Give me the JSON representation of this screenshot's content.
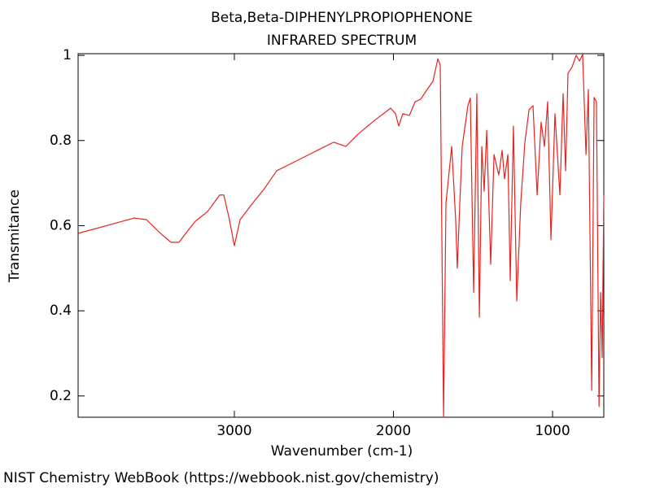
{
  "chart_data": {
    "type": "line",
    "title": "Beta,Beta-DIPHENYLPROPIOPHENONE",
    "subtitle": "INFRARED SPECTRUM",
    "x_label": "Wavenumber (cm-1)",
    "y_label": "Transmitance",
    "footer": "NIST Chemistry WebBook (https://webbook.nist.gov/chemistry)",
    "xlim": [
      3982,
      678
    ],
    "ylim": [
      0.15,
      1.004
    ],
    "xticks": [
      3000,
      2000,
      1000
    ],
    "yticks": [
      0.2,
      0.4,
      0.6,
      0.8,
      1
    ],
    "x": [
      3982,
      3706,
      3629,
      3552,
      3476,
      3399,
      3348,
      3297,
      3246,
      3169,
      3092,
      3066,
      3031,
      3000,
      2964,
      2887,
      2811,
      2734,
      2632,
      2478,
      2376,
      2299,
      2223,
      2120,
      2018,
      1987,
      1967,
      1941,
      1900,
      1864,
      1829,
      1788,
      1752,
      1721,
      1706,
      1685,
      1670,
      1634,
      1609,
      1599,
      1583,
      1568,
      1532,
      1517,
      1496,
      1476,
      1460,
      1445,
      1430,
      1414,
      1389,
      1368,
      1338,
      1317,
      1302,
      1281,
      1266,
      1246,
      1225,
      1200,
      1174,
      1148,
      1123,
      1097,
      1072,
      1051,
      1031,
      1010,
      985,
      954,
      934,
      918,
      903,
      877,
      852,
      831,
      811,
      790,
      775,
      754,
      739,
      724,
      708,
      698,
      688,
      678
    ],
    "series": [
      {
        "name": "Transmitance",
        "color": "#e8221e",
        "values": [
          0.582,
          0.61,
          0.618,
          0.614,
          0.586,
          0.561,
          0.561,
          0.586,
          0.61,
          0.633,
          0.672,
          0.672,
          0.614,
          0.553,
          0.614,
          0.652,
          0.687,
          0.729,
          0.748,
          0.777,
          0.796,
          0.786,
          0.815,
          0.847,
          0.876,
          0.863,
          0.834,
          0.863,
          0.859,
          0.891,
          0.897,
          0.92,
          0.939,
          0.992,
          0.977,
          0.15,
          0.653,
          0.786,
          0.614,
          0.5,
          0.653,
          0.786,
          0.882,
          0.9,
          0.443,
          0.91,
          0.385,
          0.786,
          0.681,
          0.824,
          0.509,
          0.767,
          0.719,
          0.777,
          0.71,
          0.767,
          0.471,
          0.834,
          0.423,
          0.653,
          0.796,
          0.872,
          0.882,
          0.672,
          0.843,
          0.786,
          0.891,
          0.567,
          0.863,
          0.672,
          0.91,
          0.729,
          0.958,
          0.973,
          1.0,
          0.987,
          1.002,
          0.767,
          0.92,
          0.213,
          0.901,
          0.891,
          0.175,
          0.443,
          0.29,
          0.672
        ]
      }
    ]
  }
}
